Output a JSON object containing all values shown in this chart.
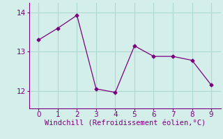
{
  "x": [
    0,
    1,
    2,
    3,
    4,
    5,
    6,
    7,
    8,
    9
  ],
  "y": [
    13.3,
    13.6,
    13.93,
    12.05,
    11.96,
    13.15,
    12.88,
    12.88,
    12.78,
    12.15
  ],
  "line_color": "#7b0080",
  "marker": "D",
  "marker_size": 2.5,
  "background_color": "#d4eeea",
  "grid_color": "#b0d8d2",
  "xlabel": "Windchill (Refroidissement éolien,°C)",
  "xlabel_color": "#7b0080",
  "xlabel_fontsize": 7.5,
  "tick_color": "#7b0080",
  "tick_fontsize": 7.5,
  "ylim": [
    11.55,
    14.25
  ],
  "xlim": [
    -0.5,
    9.5
  ],
  "yticks": [
    12,
    13,
    14
  ],
  "xticks": [
    0,
    1,
    2,
    3,
    4,
    5,
    6,
    7,
    8,
    9
  ]
}
